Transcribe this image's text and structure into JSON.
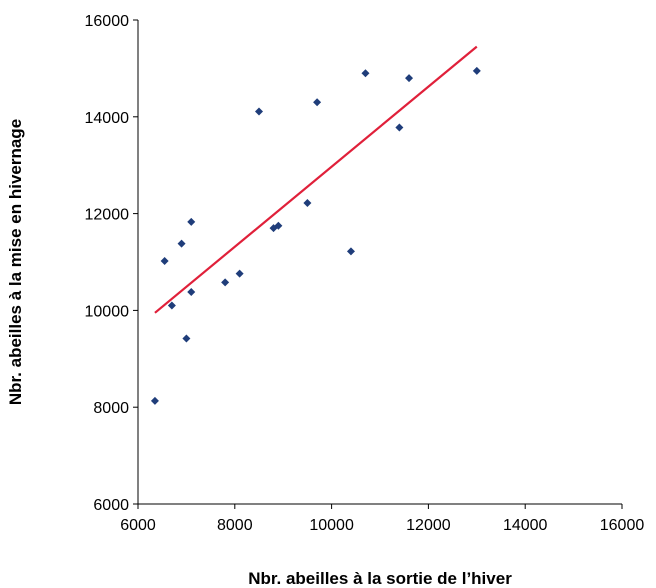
{
  "chart_data": {
    "type": "scatter",
    "title": "",
    "xlabel": "Nbr. abeilles à la sortie de l’hiver",
    "ylabel": "Nbr. abeilles à la mise en hivernage",
    "xlim": [
      6000,
      16000
    ],
    "ylim": [
      6000,
      16000
    ],
    "xticks": [
      6000,
      8000,
      10000,
      12000,
      14000,
      16000
    ],
    "yticks": [
      6000,
      8000,
      10000,
      12000,
      14000,
      16000
    ],
    "grid": false,
    "legend": "none",
    "series": [
      {
        "color": "#1f3d7a",
        "marker": "diamond",
        "points": [
          [
            6350,
            8130
          ],
          [
            6550,
            11020
          ],
          [
            6700,
            10100
          ],
          [
            6900,
            11380
          ],
          [
            7000,
            9420
          ],
          [
            7100,
            11830
          ],
          [
            7100,
            10380
          ],
          [
            7800,
            10580
          ],
          [
            8100,
            10760
          ],
          [
            8500,
            14110
          ],
          [
            8800,
            11700
          ],
          [
            8900,
            11750
          ],
          [
            9500,
            12220
          ],
          [
            9700,
            14300
          ],
          [
            10400,
            11220
          ],
          [
            10700,
            14900
          ],
          [
            11400,
            13780
          ],
          [
            11600,
            14800
          ],
          [
            13000,
            14950
          ]
        ]
      }
    ],
    "trendline": {
      "color": "#e0203a",
      "x": [
        6350,
        13000
      ],
      "y": [
        9950,
        15450
      ]
    }
  }
}
